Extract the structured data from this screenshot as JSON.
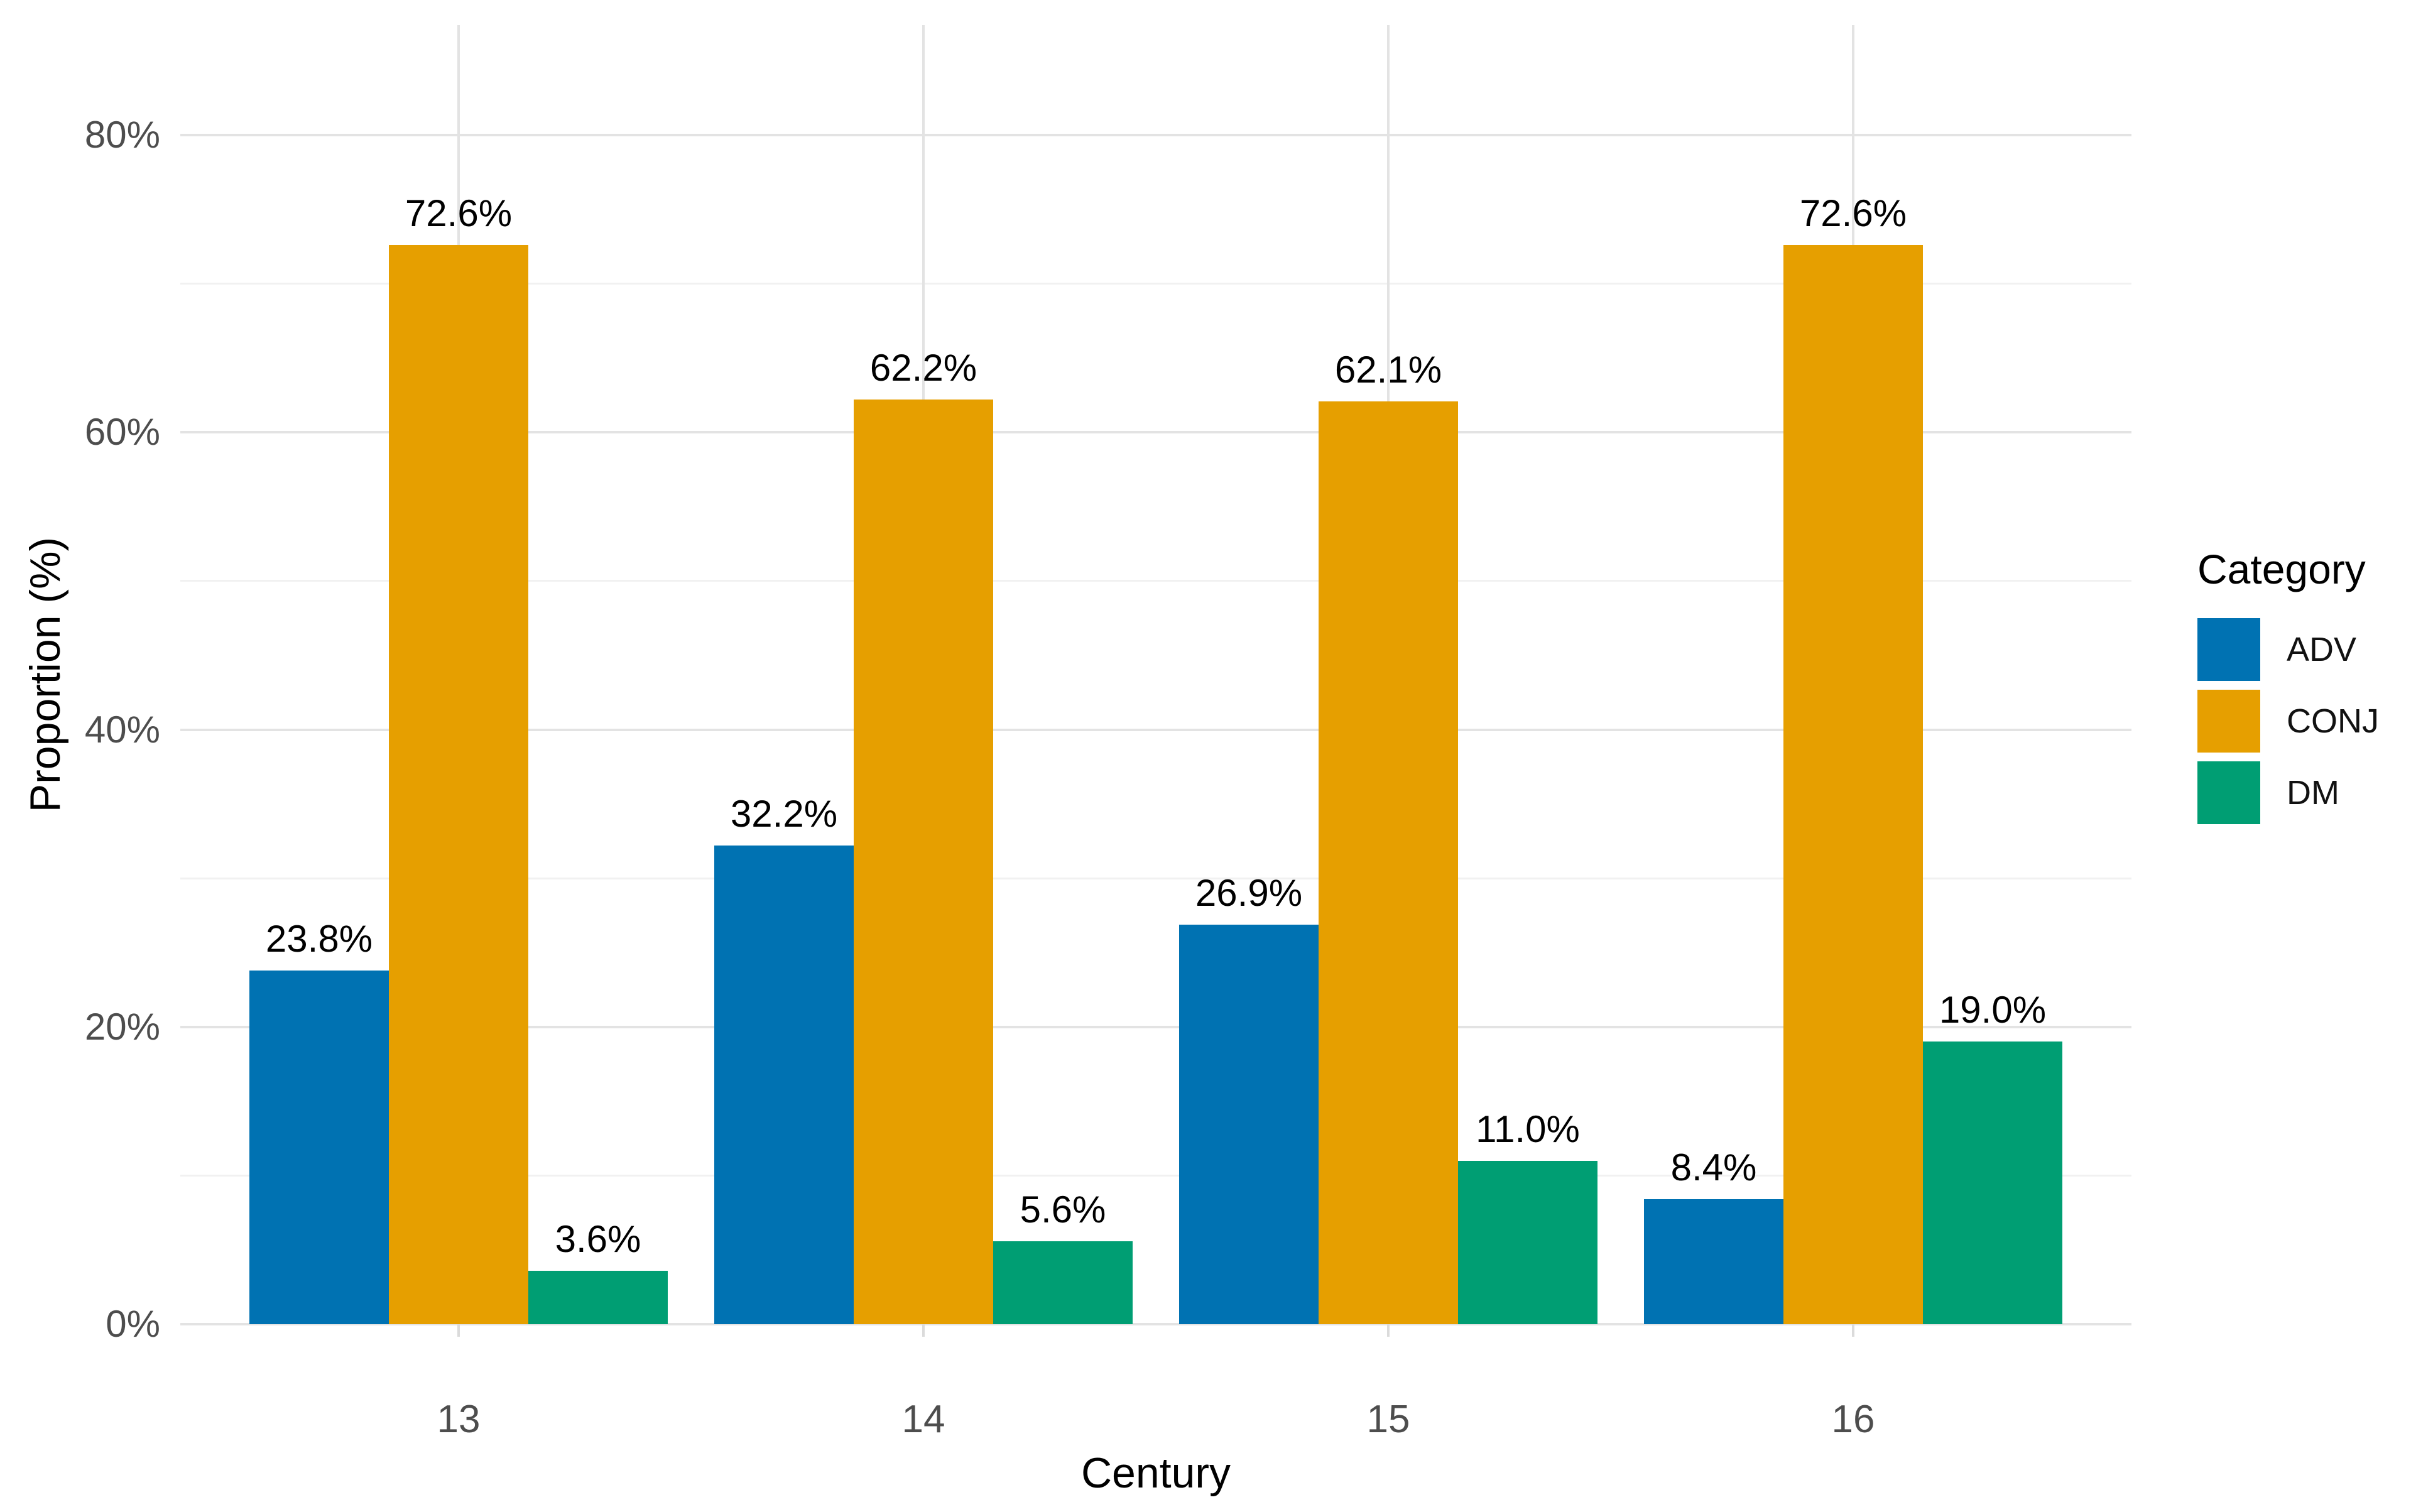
{
  "chart_data": {
    "type": "bar",
    "title": "",
    "xlabel": "Century",
    "ylabel": "Proportion (%)",
    "categories": [
      "13",
      "14",
      "15",
      "16"
    ],
    "series": [
      {
        "name": "ADV",
        "color": "#0072B2",
        "values": [
          23.8,
          32.2,
          26.9,
          8.4
        ],
        "labels": [
          "23.8%",
          "32.2%",
          "26.9%",
          "8.4%"
        ]
      },
      {
        "name": "CONJ",
        "color": "#E69F00",
        "values": [
          72.6,
          62.2,
          62.1,
          72.6
        ],
        "labels": [
          "72.6%",
          "62.2%",
          "62.1%",
          "72.6%"
        ]
      },
      {
        "name": "DM",
        "color": "#009E73",
        "values": [
          3.6,
          5.6,
          11.0,
          19.0
        ],
        "labels": [
          "3.6%",
          "5.6%",
          "11.0%",
          "19.0%"
        ]
      }
    ],
    "y_axis": {
      "tick_labels": [
        "0%",
        "20%",
        "40%",
        "60%",
        "80%"
      ],
      "tick_values": [
        0,
        20,
        40,
        60,
        80
      ],
      "minor_values": [
        10,
        30,
        50,
        70
      ],
      "range": [
        0,
        87.4
      ]
    },
    "legend": {
      "title": "Category",
      "position": "right",
      "entries": [
        "ADV",
        "CONJ",
        "DM"
      ]
    },
    "grid": {
      "major_color": "#e3e3e3",
      "minor_color": "#f1f1f1",
      "background": "#ffffff"
    }
  }
}
